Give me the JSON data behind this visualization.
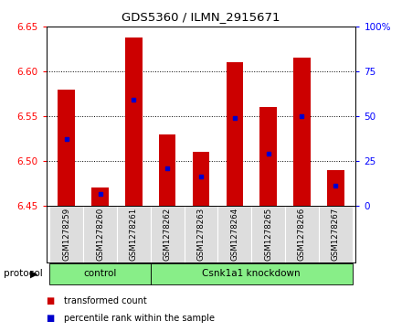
{
  "title": "GDS5360 / ILMN_2915671",
  "samples": [
    "GSM1278259",
    "GSM1278260",
    "GSM1278261",
    "GSM1278262",
    "GSM1278263",
    "GSM1278264",
    "GSM1278265",
    "GSM1278266",
    "GSM1278267"
  ],
  "bar_values": [
    6.58,
    6.47,
    6.638,
    6.53,
    6.51,
    6.61,
    6.56,
    6.615,
    6.49
  ],
  "bar_base": 6.45,
  "percentile_values": [
    6.525,
    6.463,
    6.568,
    6.492,
    6.483,
    6.548,
    6.508,
    6.55,
    6.472
  ],
  "ylim": [
    6.45,
    6.65
  ],
  "ylim_right": [
    0,
    100
  ],
  "yticks_left": [
    6.45,
    6.5,
    6.55,
    6.6,
    6.65
  ],
  "yticks_right": [
    0,
    25,
    50,
    75,
    100
  ],
  "bar_color": "#cc0000",
  "percentile_color": "#0000cc",
  "groups": [
    {
      "label": "control",
      "start": 0,
      "end": 3
    },
    {
      "label": "Csnk1a1 knockdown",
      "start": 3,
      "end": 9
    }
  ],
  "group_color": "#88ee88",
  "cell_color": "#dddddd",
  "protocol_label": "protocol",
  "legend_items": [
    {
      "label": "transformed count",
      "color": "#cc0000"
    },
    {
      "label": "percentile rank within the sample",
      "color": "#0000cc"
    }
  ],
  "grid_linestyle": "dotted",
  "bar_width": 0.5
}
